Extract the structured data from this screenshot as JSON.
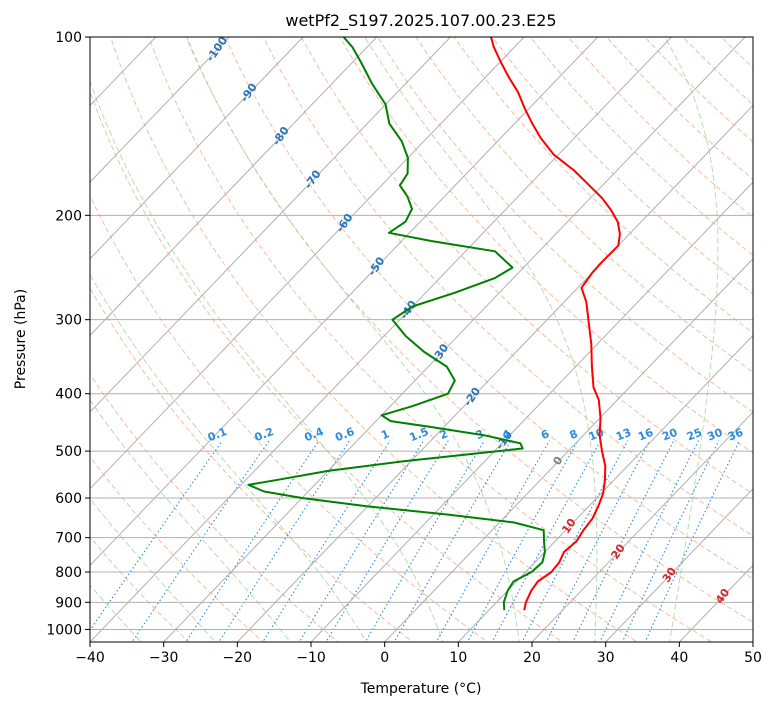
{
  "chart_data": {
    "type": "line",
    "subtype": "skew-t log-p diagram",
    "title": "wetPf2_S197.2025.107.00.23.E25",
    "xlabel": "Temperature (°C)",
    "ylabel": "Pressure (hPa)",
    "xlim": [
      -40,
      50
    ],
    "ylim": [
      1050,
      100
    ],
    "y_scale": "log",
    "x_ticks": [
      "−40",
      "−30",
      "−20",
      "−10",
      "0",
      "10",
      "20",
      "30",
      "40",
      "50"
    ],
    "x_tick_values": [
      -40,
      -30,
      -20,
      -10,
      0,
      10,
      20,
      30,
      40,
      50
    ],
    "y_ticks": [
      "100",
      "200",
      "300",
      "400",
      "500",
      "600",
      "700",
      "800",
      "900",
      "1000"
    ],
    "y_tick_values": [
      100,
      200,
      300,
      400,
      500,
      600,
      700,
      800,
      900,
      1000
    ],
    "grid": true,
    "isotherm_labels": {
      "values": [
        -100,
        -90,
        -80,
        -70,
        -60,
        -50,
        -40,
        -30,
        -20,
        -10,
        0,
        10,
        20,
        30,
        40
      ],
      "text": [
        "-100",
        "-90",
        "-80",
        "-70",
        "-60",
        "-50",
        "-40",
        "-30",
        "-20",
        "-10",
        "0",
        "10",
        "20",
        "30",
        "40"
      ]
    },
    "mixing_ratio_labels": {
      "values": [
        0.1,
        0.2,
        0.4,
        0.6,
        1,
        1.5,
        2,
        3,
        4,
        6,
        8,
        10,
        13,
        16,
        20,
        25,
        30,
        36
      ],
      "text": [
        "0.1",
        "0.2",
        "0.4",
        "0.6",
        "1",
        "1.5",
        "2",
        "3",
        "4",
        "6",
        "8",
        "10",
        "13",
        "16",
        "20",
        "25",
        "30",
        "36"
      ]
    },
    "series": [
      {
        "color": "#ff0000",
        "points": [
          [
            928,
            14.8
          ],
          [
            900,
            14.0
          ],
          [
            860,
            13.2
          ],
          [
            830,
            12.9
          ],
          [
            800,
            13.5
          ],
          [
            770,
            13.3
          ],
          [
            740,
            12.6
          ],
          [
            710,
            12.9
          ],
          [
            680,
            12.4
          ],
          [
            650,
            12.1
          ],
          [
            620,
            11.3
          ],
          [
            590,
            10.3
          ],
          [
            560,
            8.8
          ],
          [
            530,
            7.0
          ],
          [
            500,
            4.6
          ],
          [
            470,
            2.2
          ],
          [
            440,
            0.1
          ],
          [
            410,
            -2.5
          ],
          [
            390,
            -4.9
          ],
          [
            360,
            -7.8
          ],
          [
            330,
            -10.8
          ],
          [
            300,
            -14.4
          ],
          [
            280,
            -17.0
          ],
          [
            265,
            -19.5
          ],
          [
            250,
            -20.0
          ],
          [
            240,
            -20.1
          ],
          [
            225,
            -20.0
          ],
          [
            215,
            -21.3
          ],
          [
            205,
            -23.2
          ],
          [
            196,
            -25.6
          ],
          [
            187,
            -28.4
          ],
          [
            178,
            -31.8
          ],
          [
            168,
            -35.8
          ],
          [
            158,
            -40.6
          ],
          [
            148,
            -44.6
          ],
          [
            140,
            -47.6
          ],
          [
            132,
            -50.6
          ],
          [
            124,
            -53.6
          ],
          [
            117,
            -56.8
          ],
          [
            110,
            -60.0
          ],
          [
            104,
            -62.8
          ],
          [
            100,
            -64.5
          ]
        ]
      },
      {
        "color": "#008000",
        "points": [
          [
            928,
            12.1
          ],
          [
            900,
            11.0
          ],
          [
            860,
            10.0
          ],
          [
            830,
            9.6
          ],
          [
            800,
            10.8
          ],
          [
            770,
            11.0
          ],
          [
            740,
            10.0
          ],
          [
            710,
            8.5
          ],
          [
            680,
            7.0
          ],
          [
            660,
            2.0
          ],
          [
            640,
            -8.0
          ],
          [
            620,
            -20.0
          ],
          [
            600,
            -30.0
          ],
          [
            585,
            -36.0
          ],
          [
            570,
            -39.0
          ],
          [
            560,
            -36.0
          ],
          [
            540,
            -30.0
          ],
          [
            520,
            -21.0
          ],
          [
            505,
            -12.5
          ],
          [
            495,
            -6.5
          ],
          [
            485,
            -7.5
          ],
          [
            470,
            -13.5
          ],
          [
            455,
            -22.0
          ],
          [
            445,
            -28.0
          ],
          [
            435,
            -30.0
          ],
          [
            420,
            -27.0
          ],
          [
            400,
            -23.8
          ],
          [
            380,
            -24.6
          ],
          [
            360,
            -27.5
          ],
          [
            340,
            -32.5
          ],
          [
            320,
            -37.0
          ],
          [
            300,
            -41.0
          ],
          [
            285,
            -40.0
          ],
          [
            270,
            -36.0
          ],
          [
            255,
            -32.5
          ],
          [
            245,
            -31.5
          ],
          [
            230,
            -36.0
          ],
          [
            221,
            -46.0
          ],
          [
            214,
            -52.8
          ],
          [
            205,
            -52.0
          ],
          [
            195,
            -52.8
          ],
          [
            186,
            -55.0
          ],
          [
            178,
            -57.5
          ],
          [
            170,
            -58.0
          ],
          [
            160,
            -60.0
          ],
          [
            150,
            -63.0
          ],
          [
            140,
            -67.0
          ],
          [
            130,
            -70.0
          ],
          [
            120,
            -74.5
          ],
          [
            110,
            -79.0
          ],
          [
            104,
            -82.0
          ],
          [
            100,
            -84.5
          ]
        ]
      }
    ]
  }
}
